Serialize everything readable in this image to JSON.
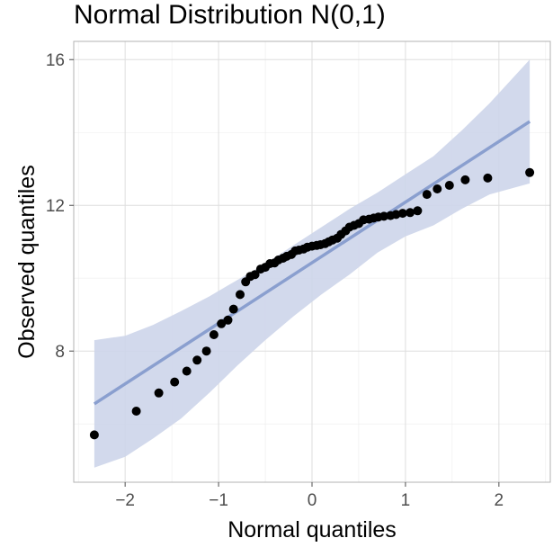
{
  "chart_data": {
    "type": "scatter",
    "title": "Normal Distribution N(0,1)",
    "xlabel": "Normal quantiles",
    "ylabel": "Observed quantiles",
    "xlim": [
      -2.55,
      2.55
    ],
    "ylim": [
      4.4,
      16.5
    ],
    "x_ticks": [
      -2,
      -1,
      0,
      1,
      2
    ],
    "x_tick_labels": [
      "−2",
      "−1",
      "0",
      "1",
      "2"
    ],
    "y_ticks": [
      8,
      12,
      16
    ],
    "y_tick_labels": [
      "8",
      "12",
      "16"
    ],
    "grid": true,
    "legend": "none",
    "colors": {
      "points": "#000000",
      "line": "#8a9fcf",
      "band": "#cdd5ea",
      "panel_border": "#b3b3b3",
      "grid": "#dedede"
    },
    "reference_line": {
      "x": [
        -2.33,
        2.33
      ],
      "y": [
        6.55,
        14.3
      ]
    },
    "confidence_band": {
      "x": [
        -2.33,
        -2.0,
        -1.7,
        -1.4,
        -1.1,
        -0.8,
        -0.5,
        -0.2,
        0.1,
        0.4,
        0.7,
        1.0,
        1.3,
        1.6,
        1.9,
        2.33
      ],
      "upper": [
        8.3,
        8.42,
        8.72,
        9.1,
        9.5,
        9.95,
        10.4,
        10.9,
        11.4,
        11.9,
        12.35,
        12.85,
        13.35,
        14.05,
        14.8,
        16.0
      ],
      "lower": [
        4.8,
        5.1,
        5.6,
        6.15,
        6.85,
        7.6,
        8.3,
        8.95,
        9.55,
        10.1,
        10.7,
        11.15,
        11.45,
        11.9,
        12.3,
        12.6
      ]
    },
    "points": {
      "x": [
        -2.33,
        -1.88,
        -1.64,
        -1.47,
        -1.34,
        -1.23,
        -1.13,
        -1.05,
        -0.97,
        -0.9,
        -0.84,
        -0.77,
        -0.71,
        -0.66,
        -0.61,
        -0.55,
        -0.5,
        -0.45,
        -0.4,
        -0.36,
        -0.31,
        -0.27,
        -0.22,
        -0.18,
        -0.14,
        -0.09,
        -0.05,
        0.0,
        0.05,
        0.09,
        0.14,
        0.18,
        0.22,
        0.27,
        0.31,
        0.36,
        0.4,
        0.45,
        0.5,
        0.55,
        0.61,
        0.66,
        0.71,
        0.77,
        0.84,
        0.9,
        0.97,
        1.05,
        1.13,
        1.23,
        1.34,
        1.47,
        1.64,
        1.88,
        2.33
      ],
      "y": [
        5.7,
        6.35,
        6.85,
        7.15,
        7.45,
        7.75,
        8.0,
        8.45,
        8.75,
        8.85,
        9.15,
        9.55,
        9.9,
        10.05,
        10.1,
        10.25,
        10.3,
        10.4,
        10.42,
        10.5,
        10.55,
        10.6,
        10.65,
        10.75,
        10.77,
        10.8,
        10.85,
        10.88,
        10.9,
        10.92,
        10.95,
        11.0,
        11.05,
        11.1,
        11.2,
        11.3,
        11.4,
        11.45,
        11.5,
        11.6,
        11.62,
        11.65,
        11.68,
        11.7,
        11.72,
        11.75,
        11.78,
        11.8,
        11.85,
        12.3,
        12.45,
        12.55,
        12.7,
        12.75,
        12.9
      ]
    }
  }
}
